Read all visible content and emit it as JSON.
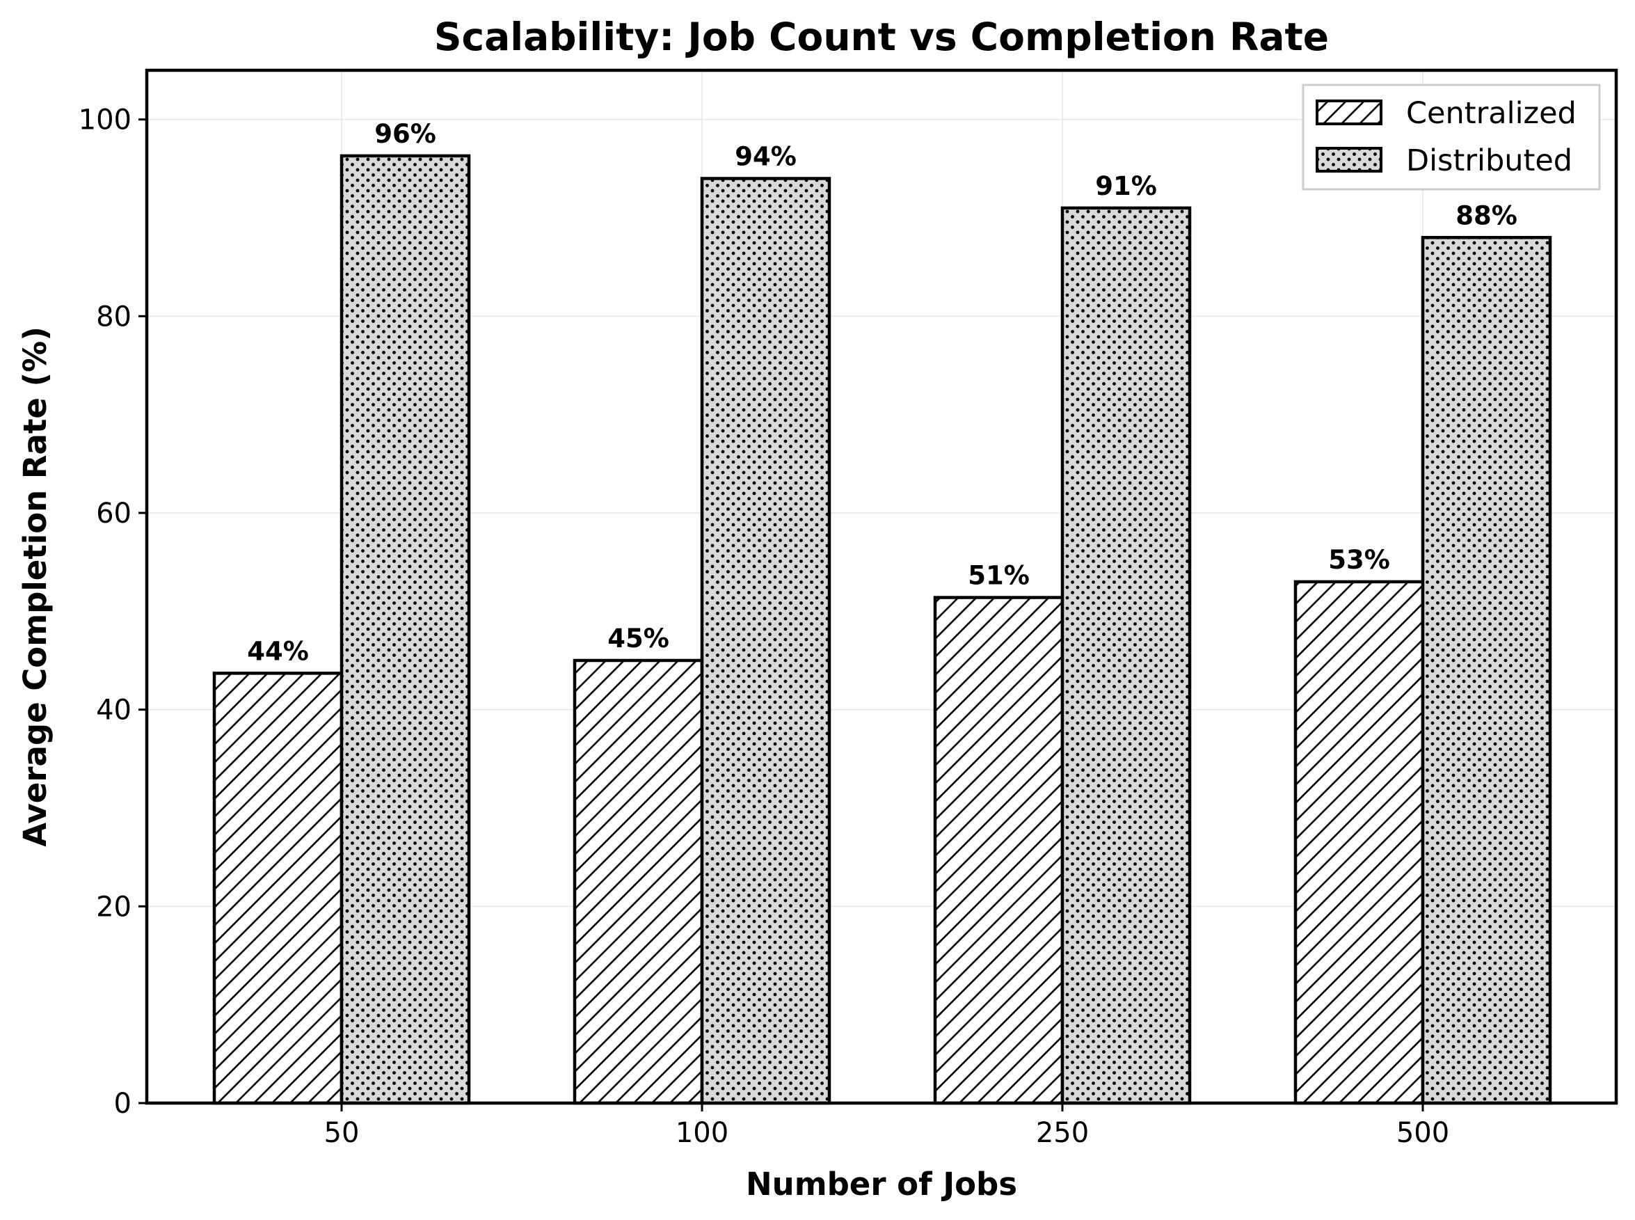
{
  "chart_data": {
    "type": "bar",
    "title": "Scalability: Job Count vs Completion Rate",
    "xlabel": "Number of Jobs",
    "ylabel": "Average Completion Rate (%)",
    "categories": [
      "50",
      "100",
      "250",
      "500"
    ],
    "series": [
      {
        "name": "Centralized",
        "pattern": "diagonal-hatch",
        "fill": "#ffffff",
        "values": [
          43.7,
          45.0,
          51.4,
          53.0
        ],
        "labels": [
          "44%",
          "45%",
          "51%",
          "53%"
        ]
      },
      {
        "name": "Distributed",
        "pattern": "dots",
        "fill": "#d9d9d9",
        "values": [
          96.3,
          94.0,
          91.0,
          88.0
        ],
        "labels": [
          "96%",
          "94%",
          "91%",
          "88%"
        ]
      }
    ],
    "ylim": [
      0,
      105
    ],
    "yticks": [
      0,
      20,
      40,
      60,
      80,
      100
    ],
    "grid": true,
    "legend_position": "top-right"
  }
}
